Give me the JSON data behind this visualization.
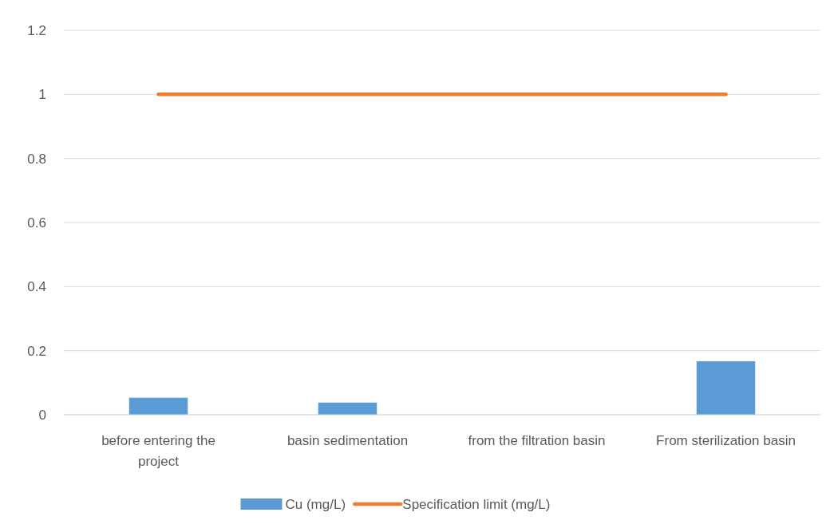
{
  "chart_data": {
    "type": "bar",
    "categories": [
      "before entering the project",
      "basin sedimentation",
      "from the filtration basin",
      "From sterilization basin"
    ],
    "series": [
      {
        "name": "Cu (mg/L)",
        "color": "#5b9bd5",
        "values": [
          0.053,
          0.038,
          0,
          0.167
        ]
      },
      {
        "name": "Specification limit (mg/L)",
        "type": "line",
        "color": "#ed7d31",
        "values": [
          1,
          1,
          1,
          1
        ]
      }
    ],
    "ylim": [
      0,
      1.2
    ],
    "yticks": [
      0,
      0.2,
      0.4,
      0.6,
      0.8,
      1,
      1.2
    ],
    "grid": "y",
    "legend": "bottom"
  }
}
